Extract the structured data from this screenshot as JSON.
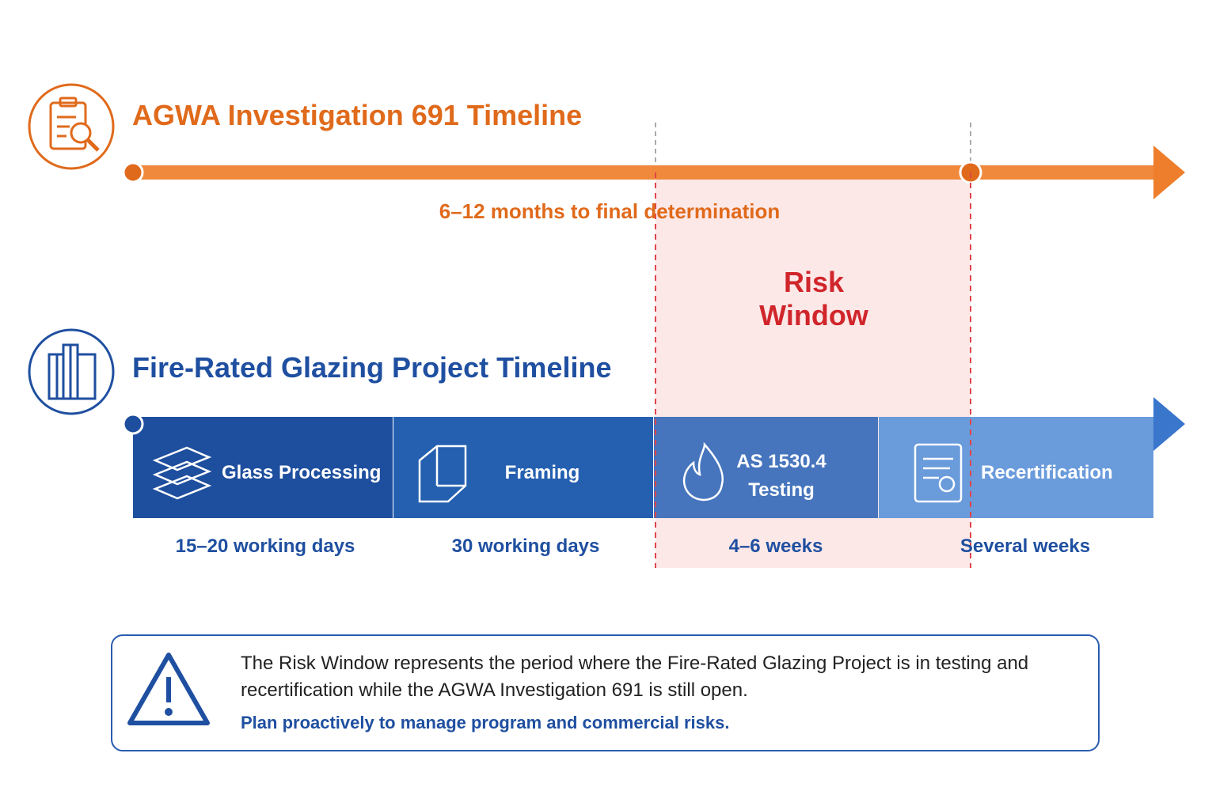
{
  "investigation": {
    "title": "AGWA Investigation 691 Timeline",
    "duration": "6–12 months to final determination"
  },
  "risk_window": {
    "label": "Risk Window"
  },
  "project": {
    "title": "Fire-Rated Glazing Project Timeline",
    "phases": [
      {
        "label": "Glass Processing",
        "duration": "15–20 working days"
      },
      {
        "label": "Framing",
        "duration": "30 working days"
      },
      {
        "label": "AS 1530.4 Testing",
        "duration": "4–6 weeks"
      },
      {
        "label": "Recertification",
        "duration": "Several weeks"
      }
    ]
  },
  "note": {
    "text": "The Risk Window represents the period where the Fire-Rated Glazing Project is in testing and recertification while the AGWA Investigation 691 is still open.",
    "emphasis": "Plan proactively to manage program and commercial risks."
  }
}
